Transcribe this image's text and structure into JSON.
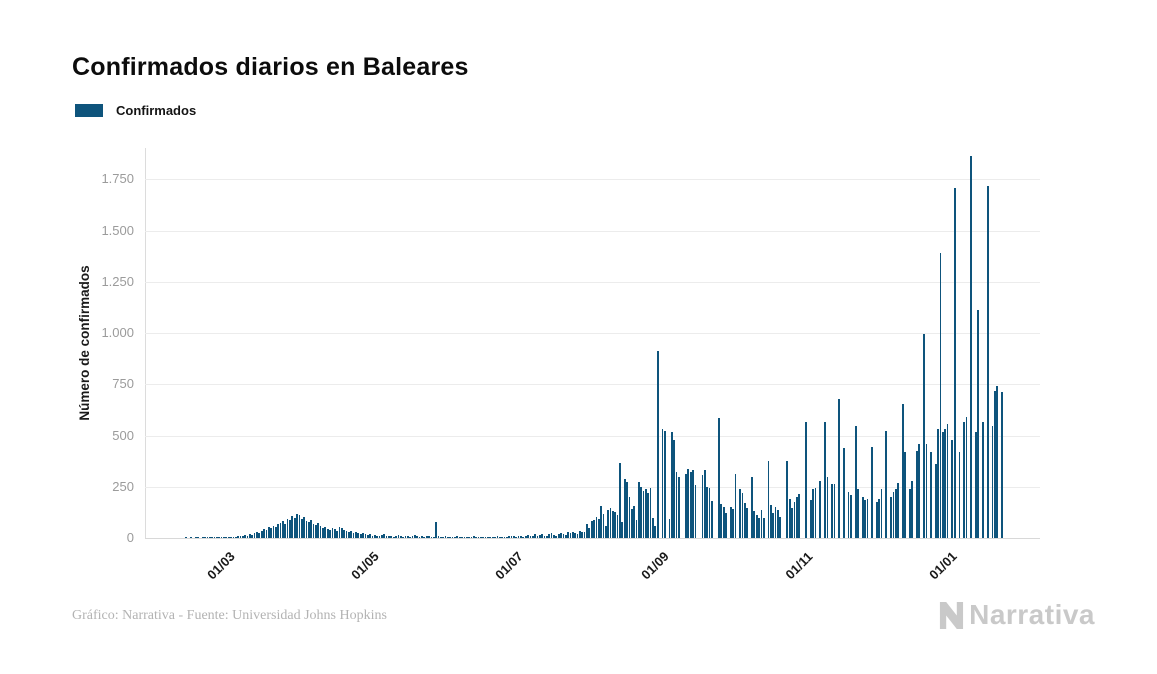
{
  "header": {
    "title": "Confirmados diarios en Baleares"
  },
  "legend": {
    "label": "Confirmados",
    "color": "#0e547c"
  },
  "footer": {
    "credit": "Gráfico: Narrativa - Fuente: Universidad Johns Hopkins",
    "logo_text": "Narrativa"
  },
  "chart_data": {
    "type": "bar",
    "title": "Confirmados diarios en Baleares",
    "series_name": "Confirmados",
    "xlabel": "",
    "ylabel": "Número de confirmados",
    "bar_color": "#0e547c",
    "grid": true,
    "legend_position": "top-left",
    "ylim": [
      0,
      1900
    ],
    "start_date": "2020-01-27",
    "frequency": "daily",
    "y_ticks": [
      {
        "label": "0",
        "value": 0
      },
      {
        "label": "250",
        "value": 250
      },
      {
        "label": "500",
        "value": 500
      },
      {
        "label": "750",
        "value": 750
      },
      {
        "label": "1.000",
        "value": 1000
      },
      {
        "label": "1.250",
        "value": 1250
      },
      {
        "label": "1.500",
        "value": 1500
      },
      {
        "label": "1.750",
        "value": 1750
      }
    ],
    "x_ticks": [
      {
        "label": "01/03",
        "day_index": 34
      },
      {
        "label": "01/05",
        "day_index": 95
      },
      {
        "label": "01/07",
        "day_index": 156
      },
      {
        "label": "01/09",
        "day_index": 218
      },
      {
        "label": "01/11",
        "day_index": 279
      },
      {
        "label": "01/01",
        "day_index": 340
      }
    ],
    "values": [
      0,
      0,
      0,
      0,
      0,
      0,
      0,
      0,
      0,
      0,
      0,
      0,
      0,
      0,
      0,
      0,
      0,
      1,
      0,
      1,
      0,
      1,
      1,
      0,
      2,
      1,
      2,
      1,
      2,
      3,
      2,
      3,
      2,
      3,
      4,
      3,
      5,
      6,
      5,
      8,
      10,
      9,
      14,
      12,
      18,
      16,
      22,
      28,
      25,
      35,
      42,
      38,
      55,
      48,
      60,
      52,
      68,
      75,
      82,
      70,
      95,
      88,
      105,
      98,
      118,
      110,
      92,
      102,
      85,
      78,
      88,
      70,
      62,
      74,
      58,
      48,
      52,
      44,
      38,
      50,
      42,
      35,
      55,
      48,
      40,
      32,
      28,
      35,
      25,
      30,
      22,
      18,
      25,
      20,
      15,
      18,
      12,
      15,
      10,
      8,
      14,
      20,
      10,
      12,
      8,
      6,
      10,
      15,
      8,
      5,
      10,
      12,
      6,
      8,
      14,
      10,
      5,
      8,
      6,
      12,
      8,
      5,
      6,
      80,
      10,
      6,
      5,
      8,
      4,
      6,
      3,
      5,
      8,
      4,
      2,
      6,
      5,
      3,
      4,
      8,
      5,
      2,
      4,
      6,
      3,
      5,
      2,
      4,
      6,
      8,
      5,
      3,
      6,
      4,
      8,
      10,
      8,
      5,
      10,
      12,
      6,
      8,
      14,
      10,
      12,
      18,
      8,
      15,
      20,
      12,
      10,
      18,
      22,
      15,
      12,
      20,
      25,
      18,
      15,
      28,
      22,
      30,
      25,
      20,
      35,
      30,
      28,
      69,
      49,
      85,
      90,
      103,
      95,
      154,
      118,
      60,
      138,
      148,
      130,
      125,
      110,
      365,
      80,
      290,
      271,
      200,
      143,
      155,
      90,
      272,
      251,
      230,
      237,
      220,
      246,
      100,
      60,
      910,
      0,
      530,
      520,
      0,
      95,
      518,
      480,
      320,
      300,
      0,
      0,
      310,
      335,
      320,
      330,
      260,
      0,
      0,
      306,
      330,
      250,
      245,
      180,
      0,
      0,
      587,
      165,
      150,
      120,
      0,
      153,
      140,
      311,
      0,
      241,
      220,
      172,
      148,
      0,
      296,
      130,
      113,
      100,
      138,
      98,
      0,
      375,
      160,
      123,
      150,
      138,
      104,
      0,
      0,
      375,
      190,
      148,
      175,
      202,
      217,
      0,
      0,
      567,
      0,
      187,
      237,
      246,
      0,
      276,
      0,
      567,
      296,
      0,
      261,
      261,
      0,
      680,
      0,
      437,
      0,
      222,
      212,
      0,
      548,
      237,
      0,
      202,
      187,
      192,
      0,
      443,
      0,
      178,
      192,
      237,
      0,
      523,
      0,
      202,
      222,
      237,
      270,
      0,
      655,
      419,
      0,
      237,
      280,
      0,
      424,
      459,
      0,
      996,
      459,
      0,
      419,
      0,
      360,
      532,
      1390,
      518,
      532,
      557,
      0,
      480,
      1705,
      0,
      419,
      0,
      567,
      590,
      0,
      1862,
      0,
      518,
      1114,
      0,
      567,
      0,
      1716,
      0,
      547,
      715,
      740,
      0,
      710
    ]
  }
}
